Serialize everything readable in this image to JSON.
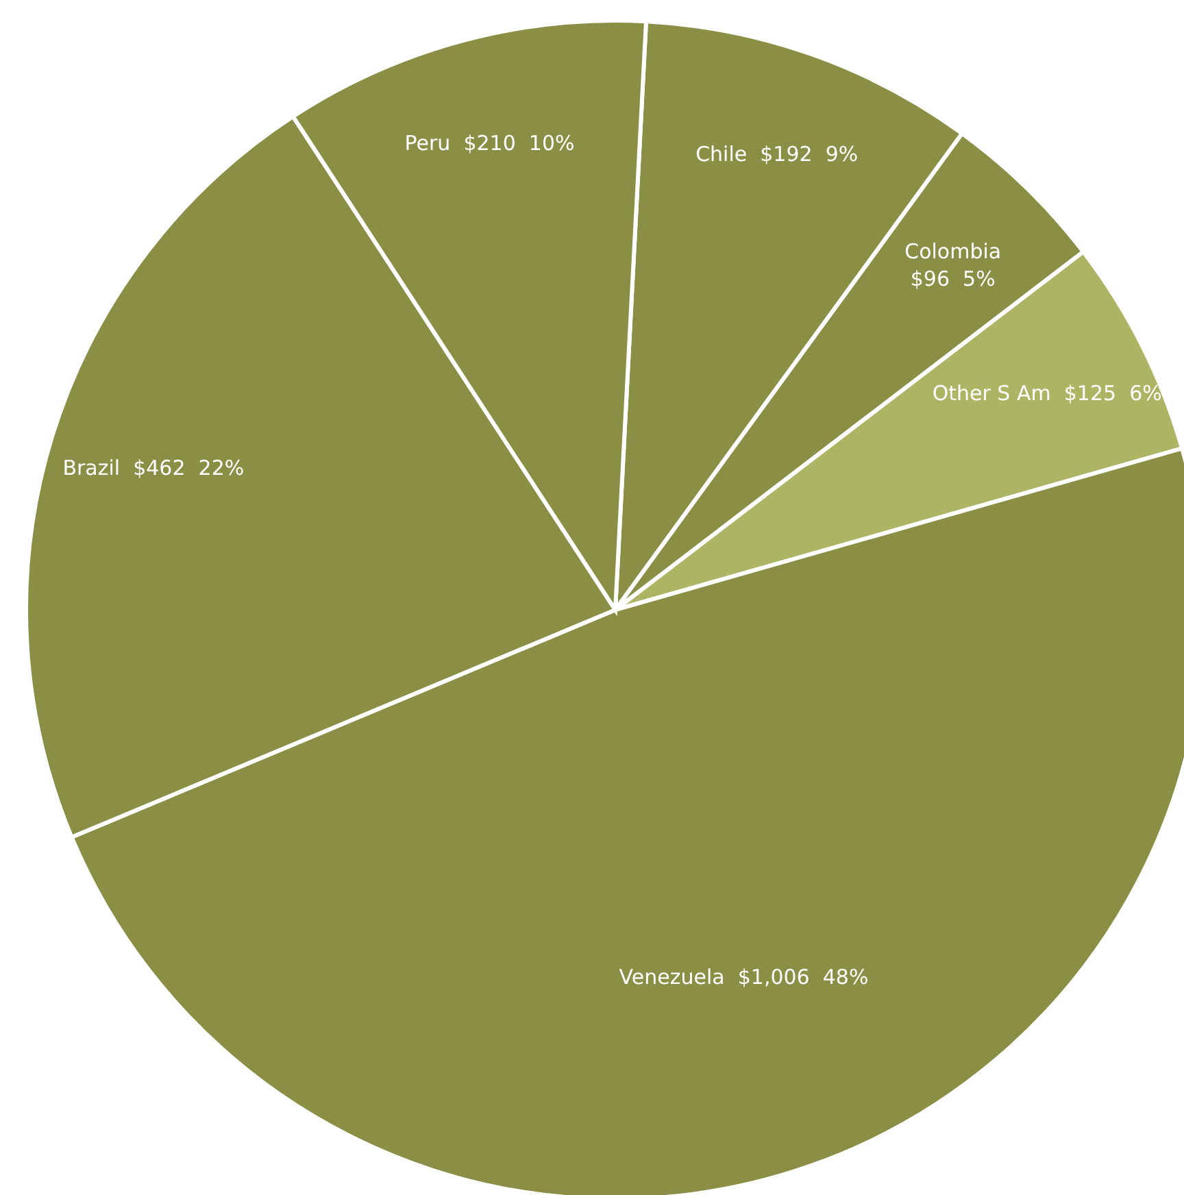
{
  "chart_data": {
    "type": "pie",
    "categories": [
      "Chile",
      "Colombia",
      "Other S Am",
      "Venezuela",
      "Brazil",
      "Peru"
    ],
    "values": [
      192,
      96,
      125,
      1006,
      462,
      210
    ],
    "colors": [
      "#8a8f45",
      "#8a8f45",
      "#adb565",
      "#8a8f45",
      "#8a8f45",
      "#8a8f45"
    ],
    "value_labels": [
      "$192  9%",
      "$96  5%",
      "$125  6%",
      "$1,006  48%",
      "$462  22%",
      "$210  10%"
    ],
    "legend": false
  }
}
